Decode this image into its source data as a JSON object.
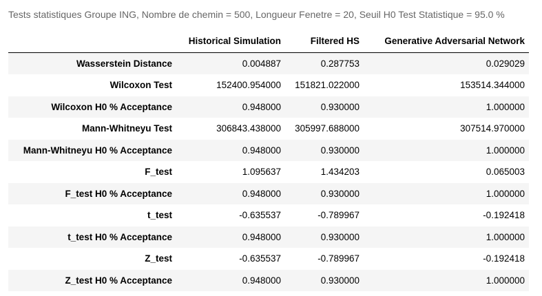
{
  "caption": "Tests statistiques Groupe ING, Nombre de chemin = 500, Longueur Fenetre = 20, Seuil H0 Test Statistique = 95.0 %",
  "table": {
    "columns": [
      "",
      "Historical Simulation",
      "Filtered HS",
      "Generative Adversarial Network"
    ],
    "rows": [
      {
        "label": "Wasserstein Distance",
        "values": [
          "0.004887",
          "0.287753",
          "0.029029"
        ]
      },
      {
        "label": "Wilcoxon Test",
        "values": [
          "152400.954000",
          "151821.022000",
          "153514.344000"
        ]
      },
      {
        "label": "Wilcoxon H0 % Acceptance",
        "values": [
          "0.948000",
          "0.930000",
          "1.000000"
        ]
      },
      {
        "label": "Mann-Whitneyu Test",
        "values": [
          "306843.438000",
          "305997.688000",
          "307514.970000"
        ]
      },
      {
        "label": "Mann-Whitneyu H0 % Acceptance",
        "values": [
          "0.948000",
          "0.930000",
          "1.000000"
        ]
      },
      {
        "label": "F_test",
        "values": [
          "1.095637",
          "1.434203",
          "0.065003"
        ]
      },
      {
        "label": "F_test H0 % Acceptance",
        "values": [
          "0.948000",
          "0.930000",
          "1.000000"
        ]
      },
      {
        "label": "t_test",
        "values": [
          "-0.635537",
          "-0.789967",
          "-0.192418"
        ]
      },
      {
        "label": "t_test H0 % Acceptance",
        "values": [
          "0.948000",
          "0.930000",
          "1.000000"
        ]
      },
      {
        "label": "Z_test",
        "values": [
          "-0.635537",
          "-0.789967",
          "-0.192418"
        ]
      },
      {
        "label": "Z_test H0 % Acceptance",
        "values": [
          "0.948000",
          "0.930000",
          "1.000000"
        ]
      }
    ]
  }
}
